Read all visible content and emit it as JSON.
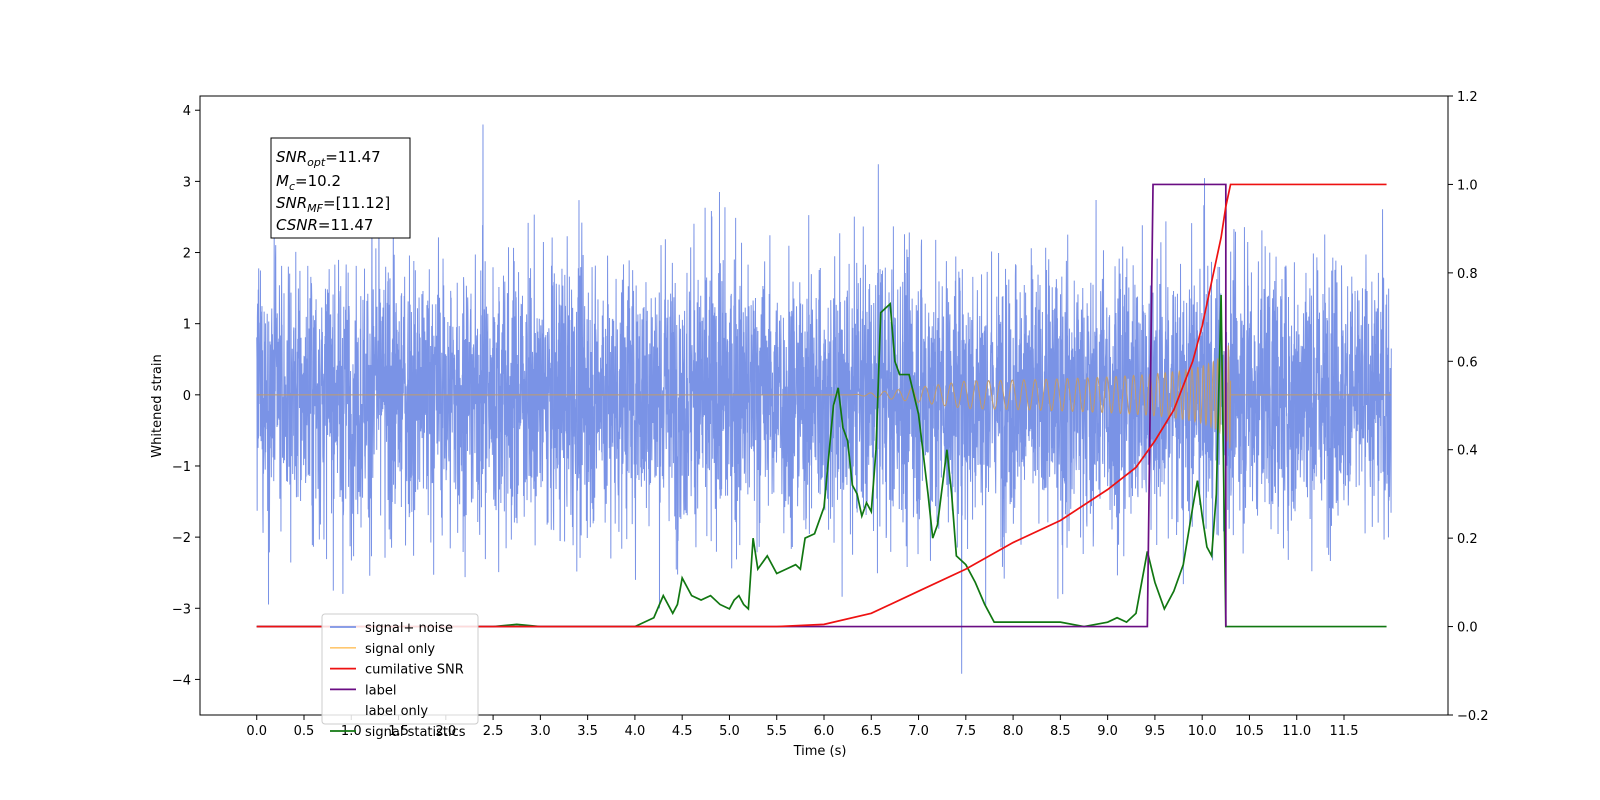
{
  "chart_data": {
    "type": "line",
    "xlabel": "Time (s)",
    "ylabel": "Whitened strain",
    "xlim": [
      -0.6,
      12.6
    ],
    "ylim_left": [
      -4.5,
      4.2
    ],
    "ylim_right": [
      -0.2,
      1.2
    ],
    "x_ticks": [
      "0.0",
      "0.5",
      "1.0",
      "1.5",
      "2.0",
      "2.5",
      "3.0",
      "3.5",
      "4.0",
      "4.5",
      "5.0",
      "5.5",
      "6.0",
      "6.5",
      "7.0",
      "7.5",
      "8.0",
      "8.5",
      "9.0",
      "9.5",
      "10.0",
      "10.5",
      "11.0",
      "11.5"
    ],
    "y_ticks_left": [
      "−4",
      "−3",
      "−2",
      "−1",
      "0",
      "1",
      "2",
      "3",
      "4"
    ],
    "y_ticks_right": [
      "−0.2",
      "0.0",
      "0.2",
      "0.4",
      "0.6",
      "0.8",
      "1.0",
      "1.2"
    ],
    "grid": false,
    "legend_position": "lower-left",
    "annotation": {
      "lines": [
        {
          "symbol": "SNR",
          "sub": "opt",
          "value": "=11.47"
        },
        {
          "symbol": "M",
          "sub": "c",
          "value": "=10.2"
        },
        {
          "symbol": "SNR",
          "sub": "MF",
          "value": "=[11.12]"
        },
        {
          "symbol": "CSNR",
          "sub": "",
          "value": "=11.47"
        }
      ]
    },
    "series": [
      {
        "name": "signal+ noise",
        "axis": "left",
        "color": "#7a93e6",
        "description_stats": {
          "noise_std": 0.95,
          "x_start": 0.0,
          "x_end": 12.0,
          "max_spike": 3.8,
          "min_spike": -4.1
        }
      },
      {
        "name": "signal only",
        "axis": "left",
        "color": "#c19a6b",
        "chirp": {
          "x_start": 6.3,
          "x_end": 10.3,
          "max_amplitude": 0.75
        }
      },
      {
        "name": "cumilative SNR",
        "axis": "right",
        "color": "#ee1111",
        "x": [
          0.0,
          5.5,
          6.0,
          6.5,
          7.0,
          7.5,
          8.0,
          8.5,
          9.0,
          9.3,
          9.5,
          9.7,
          9.9,
          10.0,
          10.1,
          10.2,
          10.25,
          10.3,
          10.35,
          10.5,
          11.0,
          11.5,
          11.95
        ],
        "y": [
          0.0,
          0.0,
          0.005,
          0.03,
          0.08,
          0.13,
          0.19,
          0.24,
          0.31,
          0.36,
          0.42,
          0.49,
          0.6,
          0.68,
          0.78,
          0.88,
          0.95,
          1.0,
          1.0,
          1.0,
          1.0,
          1.0,
          1.0
        ]
      },
      {
        "name": "label",
        "axis": "right",
        "color": "#6a0d83",
        "x": [
          0.0,
          9.42,
          9.48,
          10.25,
          10.25,
          10.25
        ],
        "y": [
          0.0,
          0.0,
          1.0,
          1.0,
          0.0,
          0.0
        ]
      },
      {
        "name": "label only",
        "axis": "right",
        "color": "#ffffff",
        "x": [],
        "y": []
      },
      {
        "name": "signal statistics",
        "axis": "right",
        "color": "#117711",
        "x": [
          0.0,
          0.5,
          1.0,
          1.5,
          2.0,
          2.5,
          2.75,
          3.0,
          3.5,
          3.75,
          4.0,
          4.2,
          4.3,
          4.4,
          4.45,
          4.5,
          4.6,
          4.7,
          4.8,
          4.9,
          5.0,
          5.05,
          5.1,
          5.15,
          5.2,
          5.25,
          5.3,
          5.4,
          5.5,
          5.6,
          5.7,
          5.75,
          5.8,
          5.9,
          6.0,
          6.1,
          6.15,
          6.2,
          6.25,
          6.3,
          6.35,
          6.4,
          6.45,
          6.5,
          6.55,
          6.6,
          6.7,
          6.75,
          6.8,
          6.9,
          7.0,
          7.1,
          7.15,
          7.2,
          7.3,
          7.35,
          7.4,
          7.5,
          7.6,
          7.7,
          7.8,
          7.9,
          8.0,
          8.5,
          8.75,
          9.0,
          9.1,
          9.2,
          9.3,
          9.42,
          9.5,
          9.6,
          9.7,
          9.8,
          9.9,
          9.95,
          10.0,
          10.05,
          10.1,
          10.15,
          10.2,
          10.25,
          10.3,
          10.35,
          11.0,
          11.5,
          11.95
        ],
        "y": [
          0.0,
          0.0,
          0.0,
          0.0,
          0.0,
          0.0,
          0.005,
          0.0,
          0.0,
          0.0,
          0.0,
          0.02,
          0.07,
          0.03,
          0.05,
          0.11,
          0.07,
          0.06,
          0.07,
          0.05,
          0.04,
          0.06,
          0.07,
          0.05,
          0.04,
          0.2,
          0.13,
          0.16,
          0.12,
          0.13,
          0.14,
          0.13,
          0.2,
          0.21,
          0.27,
          0.5,
          0.54,
          0.45,
          0.42,
          0.32,
          0.3,
          0.25,
          0.28,
          0.26,
          0.4,
          0.71,
          0.73,
          0.6,
          0.57,
          0.57,
          0.48,
          0.3,
          0.2,
          0.23,
          0.4,
          0.3,
          0.16,
          0.14,
          0.1,
          0.05,
          0.01,
          0.01,
          0.01,
          0.01,
          0.0,
          0.01,
          0.02,
          0.01,
          0.03,
          0.17,
          0.1,
          0.04,
          0.08,
          0.14,
          0.27,
          0.33,
          0.25,
          0.18,
          0.16,
          0.3,
          0.75,
          0.0,
          0.0,
          0.0,
          0.0,
          0.0,
          0.0
        ]
      }
    ]
  }
}
